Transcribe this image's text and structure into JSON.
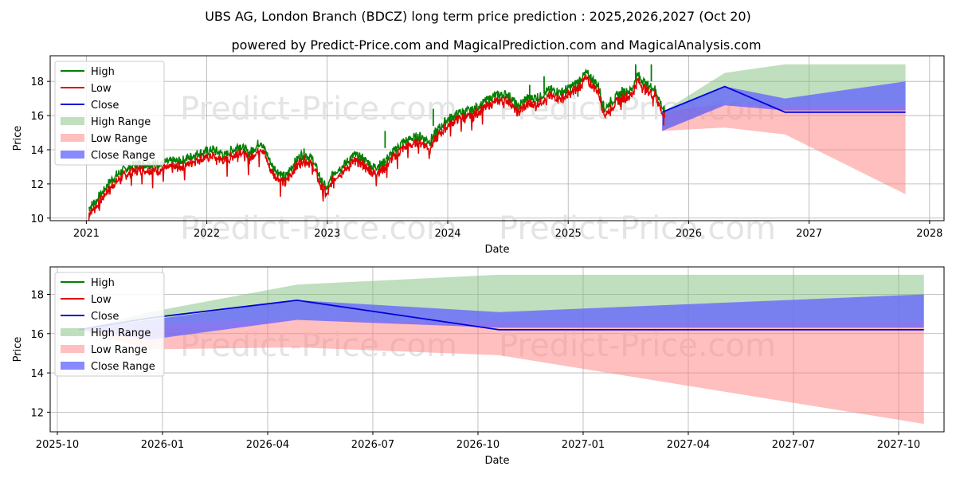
{
  "title": "UBS AG, London Branch (BDCZ) long term price prediction : 2025,2026,2027 (Oct 20)",
  "subtitle": "powered by Predict-Price.com and MagicalPrediction.com and MagicalAnalysis.com",
  "watermark": "Predict-Price.com",
  "colors": {
    "high": "#008000",
    "low": "#e00000",
    "close": "#0000dd",
    "high_range": "#80c080",
    "low_range": "#ff8080",
    "close_range": "#6060ff"
  },
  "chart_data": [
    {
      "type": "line",
      "name": "overview",
      "xlabel": "Date",
      "ylabel": "Price",
      "xlim": [
        2020.7,
        2028.12
      ],
      "ylim": [
        9.85,
        19.5
      ],
      "xticks": [
        2021,
        2022,
        2023,
        2024,
        2025,
        2026,
        2027,
        2028
      ],
      "xtick_labels": [
        "2021",
        "2022",
        "2023",
        "2024",
        "2025",
        "2026",
        "2027",
        "2028"
      ],
      "yticks": [
        10,
        12,
        14,
        16,
        18
      ],
      "ytick_labels": [
        "10",
        "12",
        "14",
        "16",
        "18"
      ],
      "legend": [
        "High",
        "Low",
        "Close",
        "High Range",
        "Low Range",
        "Close Range"
      ],
      "legend_position": "top-left",
      "history_anchors": [
        [
          2021.02,
          10.4
        ],
        [
          2021.1,
          11.0
        ],
        [
          2021.2,
          12.0
        ],
        [
          2021.3,
          12.6
        ],
        [
          2021.42,
          13.0
        ],
        [
          2021.6,
          13.0
        ],
        [
          2021.8,
          13.2
        ],
        [
          2021.92,
          13.6
        ],
        [
          2022.05,
          13.8
        ],
        [
          2022.15,
          13.5
        ],
        [
          2022.28,
          14.1
        ],
        [
          2022.35,
          13.6
        ],
        [
          2022.45,
          14.3
        ],
        [
          2022.55,
          12.8
        ],
        [
          2022.65,
          12.2
        ],
        [
          2022.72,
          13.0
        ],
        [
          2022.8,
          13.6
        ],
        [
          2022.88,
          13.3
        ],
        [
          2022.95,
          12.0
        ],
        [
          2023.0,
          11.5
        ],
        [
          2023.05,
          12.5
        ],
        [
          2023.15,
          13.0
        ],
        [
          2023.22,
          13.5
        ],
        [
          2023.3,
          13.3
        ],
        [
          2023.38,
          12.8
        ],
        [
          2023.46,
          13.0
        ],
        [
          2023.56,
          13.8
        ],
        [
          2023.62,
          14.2
        ],
        [
          2023.7,
          14.5
        ],
        [
          2023.78,
          14.6
        ],
        [
          2023.85,
          14.3
        ],
        [
          2023.92,
          15.0
        ],
        [
          2024.0,
          15.6
        ],
        [
          2024.1,
          16.0
        ],
        [
          2024.2,
          16.1
        ],
        [
          2024.3,
          16.6
        ],
        [
          2024.4,
          17.0
        ],
        [
          2024.5,
          17.1
        ],
        [
          2024.58,
          16.3
        ],
        [
          2024.65,
          16.8
        ],
        [
          2024.75,
          16.9
        ],
        [
          2024.85,
          17.3
        ],
        [
          2024.95,
          17.2
        ],
        [
          2025.05,
          17.6
        ],
        [
          2025.15,
          18.3
        ],
        [
          2025.25,
          17.6
        ],
        [
          2025.3,
          16.2
        ],
        [
          2025.38,
          16.8
        ],
        [
          2025.45,
          17.2
        ],
        [
          2025.52,
          17.3
        ],
        [
          2025.58,
          18.2
        ],
        [
          2025.65,
          17.6
        ],
        [
          2025.72,
          17.4
        ],
        [
          2025.8,
          16.0
        ]
      ],
      "spikes": [
        [
          2023.48,
          15.1
        ],
        [
          2023.88,
          16.4
        ],
        [
          2024.68,
          17.8
        ],
        [
          2024.8,
          18.3
        ],
        [
          2025.08,
          18.1
        ],
        [
          2025.56,
          19.0
        ],
        [
          2025.69,
          19.0
        ]
      ],
      "forecast": {
        "x": [
          2025.78,
          2026.3,
          2026.8,
          2027.8
        ],
        "high_range_upper": [
          16.2,
          18.5,
          19.0,
          19.0
        ],
        "high_range_lower": [
          15.1,
          16.7,
          16.6,
          16.6
        ],
        "low_range_upper": [
          16.2,
          16.7,
          16.6,
          16.6
        ],
        "low_range_lower": [
          15.1,
          15.3,
          14.9,
          11.4
        ],
        "close_range_upper": [
          16.2,
          17.7,
          17.0,
          18.0
        ],
        "close_range_lower": [
          15.1,
          16.6,
          16.3,
          16.3
        ],
        "close": [
          16.2,
          17.7,
          16.2,
          16.2
        ]
      }
    },
    {
      "type": "line",
      "name": "zoom",
      "xlabel": "Date",
      "ylabel": "Price",
      "xlim": [
        2025.733,
        2027.858
      ],
      "ylim": [
        11.0,
        19.4
      ],
      "xticks": [
        2025.75,
        2026.0,
        2026.25,
        2026.5,
        2026.75,
        2027.0,
        2027.25,
        2027.5,
        2027.75
      ],
      "xtick_labels": [
        "2025-10",
        "2026-01",
        "2026-04",
        "2026-07",
        "2026-10",
        "2027-01",
        "2027-04",
        "2027-07",
        "2027-10"
      ],
      "yticks": [
        12,
        14,
        16,
        18
      ],
      "ytick_labels": [
        "12",
        "14",
        "16",
        "18"
      ],
      "legend": [
        "High",
        "Low",
        "Close",
        "High Range",
        "Low Range",
        "Close Range"
      ],
      "legend_position": "top-left",
      "forecast": {
        "x": [
          2025.8,
          2025.97,
          2026.32,
          2026.8,
          2027.81
        ],
        "high_range_upper": [
          16.2,
          17.1,
          18.5,
          19.0,
          19.0
        ],
        "high_range_lower": [
          16.2,
          16.5,
          16.7,
          16.6,
          16.6
        ],
        "low_range_upper": [
          16.2,
          16.5,
          16.7,
          16.6,
          16.6
        ],
        "low_range_lower": [
          16.2,
          15.2,
          15.3,
          14.9,
          11.4
        ],
        "close_range_upper": [
          16.2,
          16.7,
          17.7,
          17.1,
          18.0
        ],
        "close_range_lower": [
          16.2,
          15.7,
          16.7,
          16.3,
          16.3
        ],
        "close": [
          16.2,
          16.8,
          17.7,
          16.2,
          16.2
        ]
      }
    }
  ]
}
